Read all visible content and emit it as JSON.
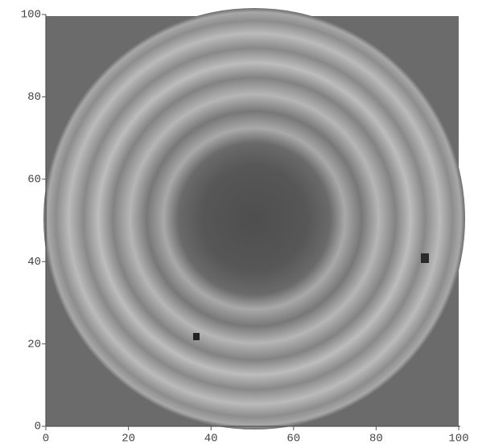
{
  "chart_data": {
    "type": "image",
    "xlim": [
      0,
      100
    ],
    "ylim": [
      0,
      100
    ],
    "xticks": [
      0,
      20,
      40,
      60,
      80,
      100
    ],
    "yticks": [
      0,
      20,
      40,
      60,
      80,
      100
    ]
  }
}
